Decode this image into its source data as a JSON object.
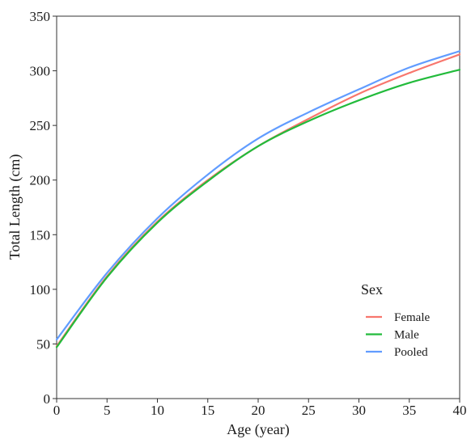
{
  "chart_data": {
    "type": "line",
    "xlabel": "Age (year)",
    "ylabel": "Total Length (cm)",
    "xlim": [
      0,
      40
    ],
    "ylim": [
      0,
      350
    ],
    "xticks": [
      0,
      5,
      10,
      15,
      20,
      25,
      30,
      35,
      40
    ],
    "yticks": [
      0,
      50,
      100,
      150,
      200,
      250,
      300,
      350
    ],
    "grid": false,
    "legend": {
      "title": "Sex",
      "placement": "bottom-right",
      "entries": [
        "Female",
        "Male",
        "Pooled"
      ]
    },
    "x": [
      0,
      5,
      10,
      15,
      20,
      25,
      30,
      35,
      40
    ],
    "series": [
      {
        "name": "Female",
        "color": "#f8766d",
        "values": [
          48,
          112,
          162,
          200,
          231,
          256,
          279,
          298,
          315
        ]
      },
      {
        "name": "Male",
        "color": "#22bb3b",
        "values": [
          47,
          111,
          161,
          199,
          231,
          254,
          273,
          289,
          301
        ]
      },
      {
        "name": "Pooled",
        "color": "#619cff",
        "values": [
          54,
          115,
          165,
          205,
          238,
          262,
          283,
          303,
          318
        ]
      }
    ]
  }
}
